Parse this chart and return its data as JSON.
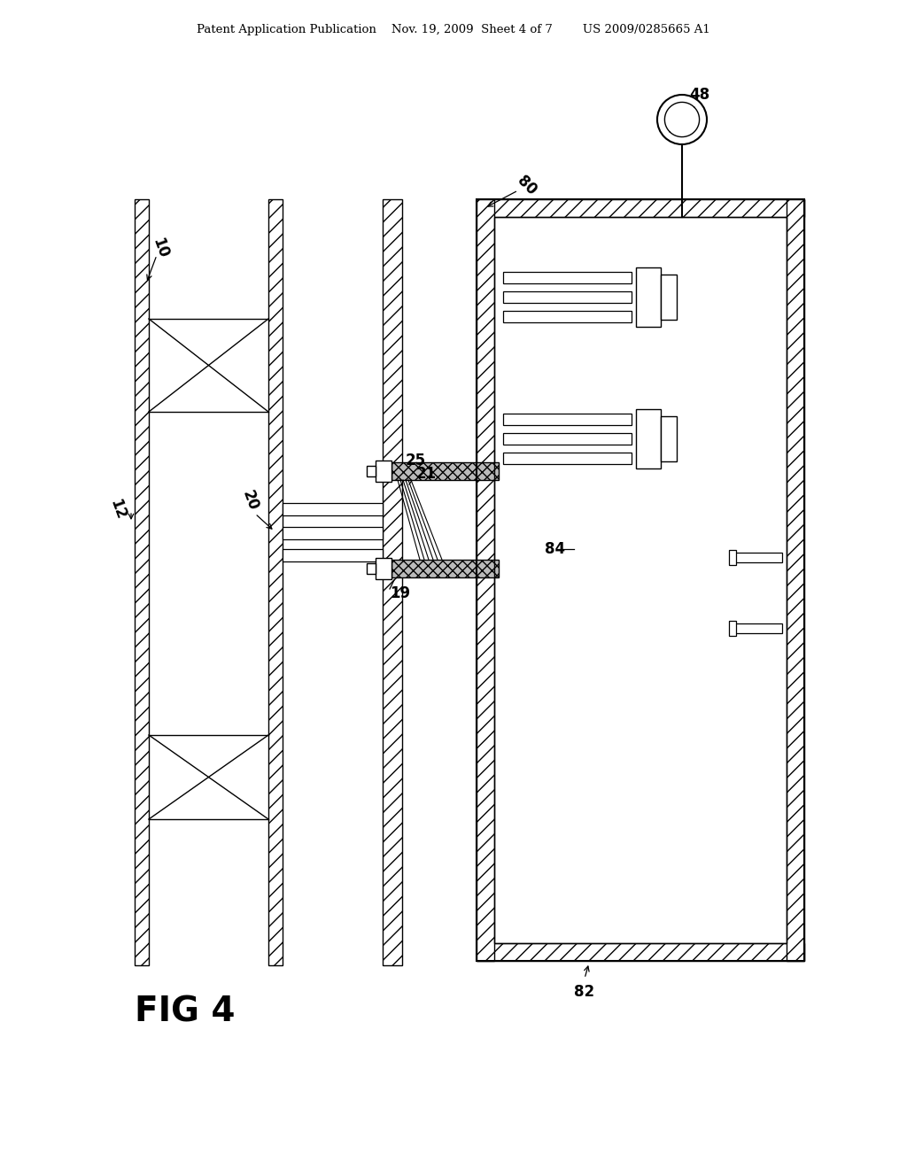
{
  "bg_color": "#ffffff",
  "line_color": "#000000",
  "header": "Patent Application Publication    Nov. 19, 2009  Sheet 4 of 7        US 2009/0285665 A1",
  "fig_label": "FIG 4"
}
